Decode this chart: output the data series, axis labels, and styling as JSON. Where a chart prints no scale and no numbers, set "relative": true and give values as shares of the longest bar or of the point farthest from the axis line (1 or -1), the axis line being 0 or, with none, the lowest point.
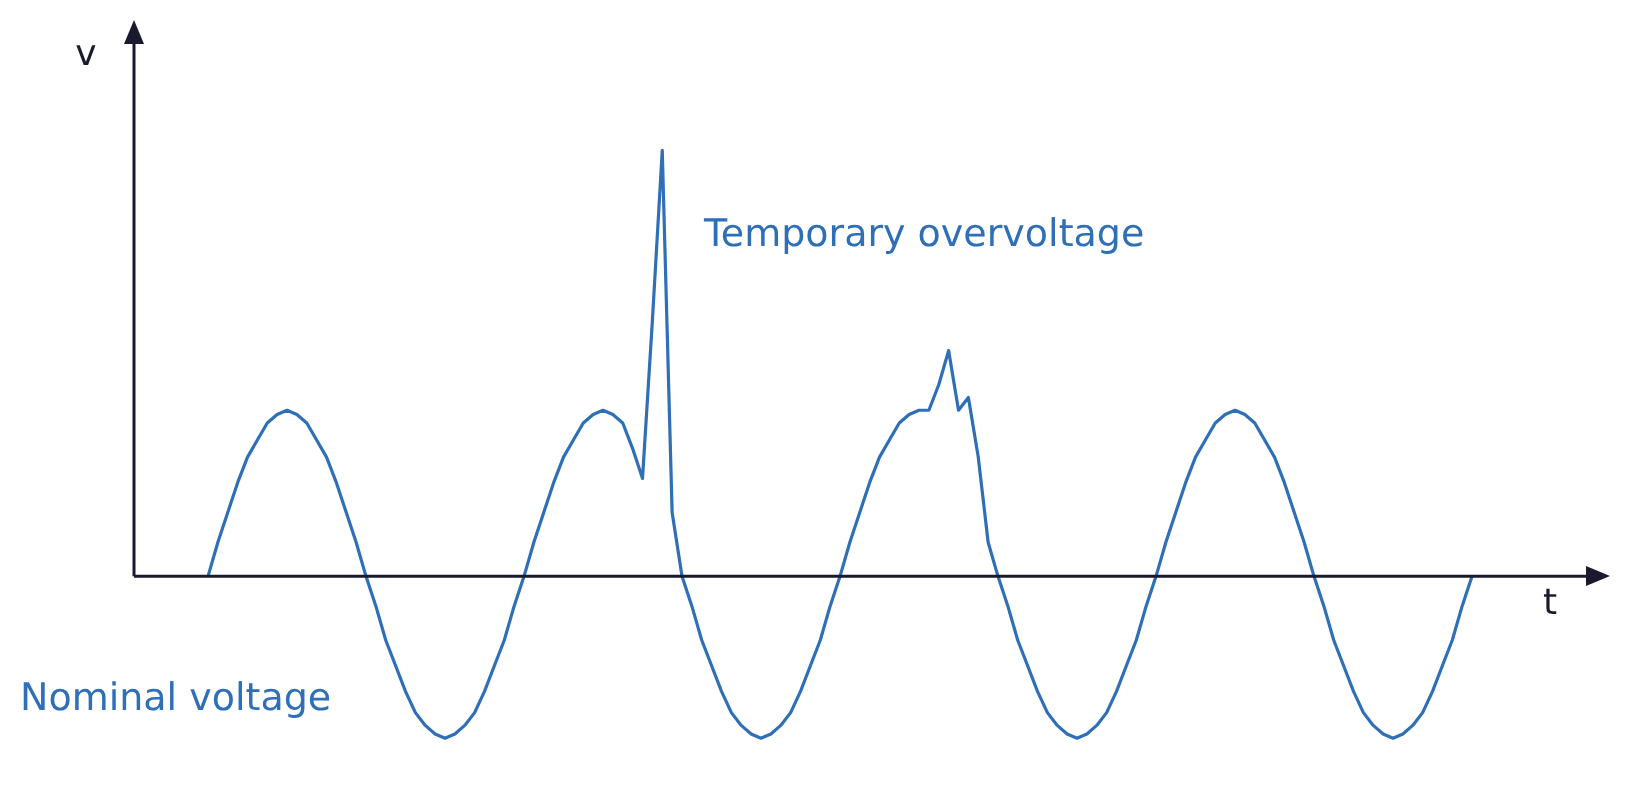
{
  "chart_data": {
    "type": "line",
    "relative": true,
    "xlabel": "t",
    "ylabel": "v",
    "tick_labels": false,
    "legend": false,
    "marker": "none",
    "line_style": "solid",
    "annotations": [
      "Temporary overvoltage",
      "Nominal voltage"
    ],
    "categories": [
      null,
      null,
      null,
      null,
      null,
      null,
      null,
      null,
      null,
      null,
      null,
      null,
      null,
      null,
      null,
      null,
      null,
      null,
      null,
      null,
      null,
      null,
      null,
      null,
      null,
      null,
      null,
      null,
      null,
      null,
      null,
      null,
      null,
      null,
      null,
      null,
      null,
      null,
      null,
      null,
      null,
      null,
      null,
      null,
      null,
      null,
      null,
      null,
      null,
      null,
      null,
      null,
      null,
      null,
      null,
      null,
      null,
      null,
      null,
      null,
      null,
      null,
      null,
      null,
      null,
      null,
      null,
      null,
      null,
      null,
      null,
      null,
      null,
      null,
      null,
      null,
      null,
      null,
      null,
      null,
      null,
      null,
      null,
      null,
      null,
      null,
      null,
      null,
      null,
      null,
      null,
      null,
      null,
      null,
      null,
      null,
      null,
      null,
      null,
      null,
      null,
      null,
      null,
      null,
      null,
      null,
      null,
      null,
      null,
      null,
      null,
      null,
      null,
      null,
      null,
      null,
      null,
      null,
      null,
      null,
      null,
      null,
      null,
      null,
      null,
      null,
      null,
      null,
      null
    ],
    "series": [
      {
        "color": "#2e6fb7",
        "values": [
          0,
          0.08,
          0.15,
          0.22,
          0.28,
          0.32,
          0.36,
          0.38,
          0.39,
          0.38,
          0.36,
          0.32,
          0.28,
          0.22,
          0.15,
          0.08,
          0,
          -0.07,
          -0.15,
          -0.21,
          -0.27,
          -0.32,
          -0.35,
          -0.37,
          -0.38,
          -0.37,
          -0.35,
          -0.32,
          -0.27,
          -0.21,
          -0.15,
          -0.07,
          0,
          0.08,
          0.15,
          0.22,
          0.28,
          0.32,
          0.36,
          0.38,
          0.39,
          0.38,
          0.36,
          0.3,
          0.23,
          0.6,
          1,
          0.15,
          0,
          -0.07,
          -0.15,
          -0.21,
          -0.27,
          -0.32,
          -0.35,
          -0.37,
          -0.38,
          -0.37,
          -0.35,
          -0.32,
          -0.27,
          -0.21,
          -0.15,
          -0.07,
          0,
          0.08,
          0.15,
          0.22,
          0.28,
          0.32,
          0.36,
          0.38,
          0.39,
          0.39,
          0.45,
          0.53,
          0.39,
          0.42,
          0.28,
          0.08,
          0,
          -0.07,
          -0.15,
          -0.21,
          -0.27,
          -0.32,
          -0.35,
          -0.37,
          -0.38,
          -0.37,
          -0.35,
          -0.32,
          -0.27,
          -0.21,
          -0.15,
          -0.07,
          0,
          0.08,
          0.15,
          0.22,
          0.28,
          0.32,
          0.36,
          0.38,
          0.39,
          0.38,
          0.36,
          0.32,
          0.28,
          0.22,
          0.15,
          0.08,
          0,
          -0.07,
          -0.15,
          -0.21,
          -0.27,
          -0.32,
          -0.35,
          -0.37,
          -0.38,
          -0.37,
          -0.35,
          -0.32,
          -0.27,
          -0.21,
          -0.15,
          -0.07,
          0
        ]
      }
    ]
  }
}
